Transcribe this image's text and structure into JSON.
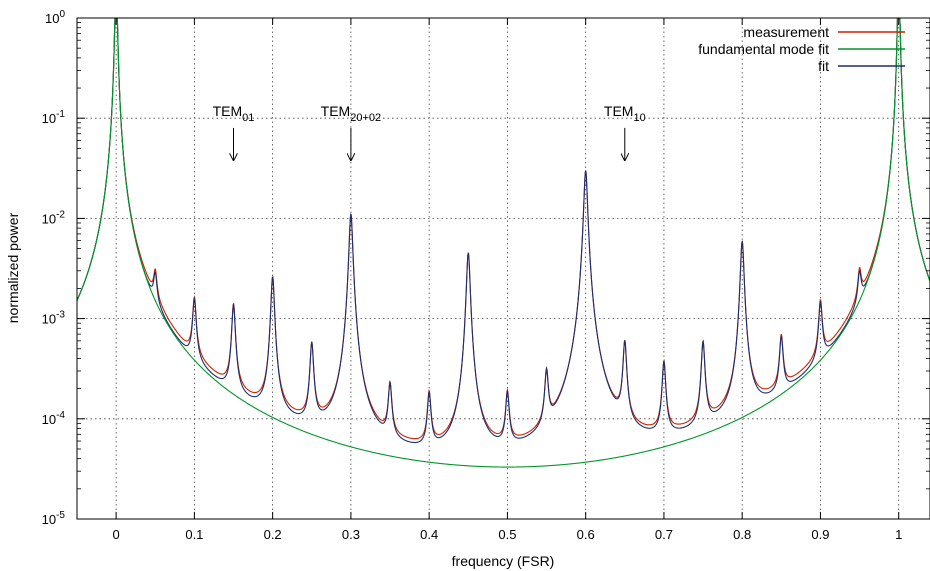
{
  "chart_data": {
    "type": "line",
    "xlabel": "frequency (FSR)",
    "ylabel": "normalized power",
    "xlim": [
      -0.05,
      1.04
    ],
    "ylim": [
      1e-05,
      1
    ],
    "yscale": "log",
    "grid": true,
    "legend_position": "top-right",
    "x_ticks": [
      {
        "value": 0,
        "label": "0"
      },
      {
        "value": 0.1,
        "label": "0.1"
      },
      {
        "value": 0.2,
        "label": "0.2"
      },
      {
        "value": 0.3,
        "label": "0.3"
      },
      {
        "value": 0.4,
        "label": "0.4"
      },
      {
        "value": 0.5,
        "label": "0.5"
      },
      {
        "value": 0.6,
        "label": "0.6"
      },
      {
        "value": 0.7,
        "label": "0.7"
      },
      {
        "value": 0.8,
        "label": "0.8"
      },
      {
        "value": 0.9,
        "label": "0.9"
      },
      {
        "value": 1,
        "label": "1"
      }
    ],
    "y_ticks": [
      {
        "value": 1e-05,
        "base": "10",
        "exp": "-5"
      },
      {
        "value": 0.0001,
        "base": "10",
        "exp": "-4"
      },
      {
        "value": 0.001,
        "base": "10",
        "exp": "-3"
      },
      {
        "value": 0.01,
        "base": "10",
        "exp": "-2"
      },
      {
        "value": 0.1,
        "base": "10",
        "exp": "-1"
      },
      {
        "value": 1,
        "base": "10",
        "exp": "0"
      }
    ],
    "series": [
      {
        "name": "measurement",
        "color": "#cc2200",
        "model": {
          "carrier": {
            "positions": [
              0,
              1
            ],
            "height": 1,
            "width": 0.0015
          },
          "baseline": 1.5e-05,
          "shoulder_width": 0.045,
          "peaks": [
            {
              "x": 0.05,
              "height": 0.0014
            },
            {
              "x": 0.1,
              "height": 0.0012
            },
            {
              "x": 0.15,
              "height": 0.0012
            },
            {
              "x": 0.2,
              "height": 0.0025
            },
            {
              "x": 0.25,
              "height": 0.00048
            },
            {
              "x": 0.3,
              "height": 0.011
            },
            {
              "x": 0.35,
              "height": 0.00016
            },
            {
              "x": 0.4,
              "height": 0.00013
            },
            {
              "x": 0.45,
              "height": 0.0045
            },
            {
              "x": 0.5,
              "height": 0.00013
            },
            {
              "x": 0.55,
              "height": 0.00022
            },
            {
              "x": 0.6,
              "height": 0.03
            },
            {
              "x": 0.65,
              "height": 0.0005
            },
            {
              "x": 0.7,
              "height": 0.0003
            },
            {
              "x": 0.75,
              "height": 0.0005
            },
            {
              "x": 0.8,
              "height": 0.0058
            },
            {
              "x": 0.85,
              "height": 0.00048
            },
            {
              "x": 0.9,
              "height": 0.0011
            },
            {
              "x": 0.95,
              "height": 0.0015
            }
          ]
        }
      },
      {
        "name": "fundamental mode fit",
        "color": "#00962a",
        "model": {
          "carrier": {
            "positions": [
              0,
              1
            ],
            "height": 1,
            "width": 0.0015
          },
          "baseline": 1.5e-05,
          "shoulder_width": 0,
          "peaks": []
        }
      },
      {
        "name": "fit",
        "color": "#1a2f6e",
        "model": {
          "carrier": {
            "positions": [
              0,
              1
            ],
            "height": 1,
            "width": 0.0015
          },
          "baseline": 1.5e-05,
          "shoulder_width": 0,
          "peaks": [
            {
              "x": 0.05,
              "height": 0.0014
            },
            {
              "x": 0.1,
              "height": 0.0012
            },
            {
              "x": 0.15,
              "height": 0.0012
            },
            {
              "x": 0.2,
              "height": 0.0025
            },
            {
              "x": 0.25,
              "height": 0.00048
            },
            {
              "x": 0.3,
              "height": 0.011
            },
            {
              "x": 0.35,
              "height": 0.00016
            },
            {
              "x": 0.4,
              "height": 0.00013
            },
            {
              "x": 0.45,
              "height": 0.0045
            },
            {
              "x": 0.5,
              "height": 0.00013
            },
            {
              "x": 0.55,
              "height": 0.00022
            },
            {
              "x": 0.6,
              "height": 0.03
            },
            {
              "x": 0.65,
              "height": 0.0005
            },
            {
              "x": 0.7,
              "height": 0.0003
            },
            {
              "x": 0.75,
              "height": 0.0005
            },
            {
              "x": 0.8,
              "height": 0.0058
            },
            {
              "x": 0.85,
              "height": 0.00048
            },
            {
              "x": 0.9,
              "height": 0.0011
            },
            {
              "x": 0.95,
              "height": 0.0015
            }
          ]
        }
      }
    ],
    "annotations": [
      {
        "base": "TEM",
        "sub": "01",
        "x": 0.15,
        "arrow_from": 0.08,
        "arrow_to": 0.038
      },
      {
        "base": "TEM",
        "sub": "20+02",
        "x": 0.3,
        "arrow_from": 0.08,
        "arrow_to": 0.038
      },
      {
        "base": "TEM",
        "sub": "10",
        "x": 0.65,
        "arrow_from": 0.08,
        "arrow_to": 0.038
      }
    ]
  }
}
